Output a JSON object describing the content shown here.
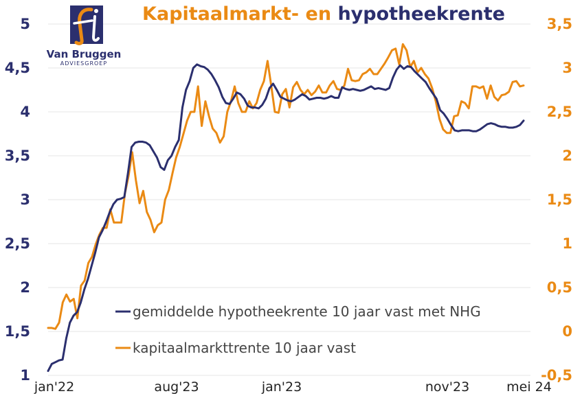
{
  "logo": {
    "name": "Van Bruggen",
    "sub": "ADVIESGROEP",
    "colors": {
      "blue": "#2b2f6e",
      "orange": "#ea8a14"
    }
  },
  "chart_data": {
    "type": "line",
    "title_parts": [
      {
        "text": "Kapitaalmarkt- en ",
        "color": "#ea8a14"
      },
      {
        "text": "hypotheekrente",
        "color": "#2b2f6e"
      }
    ],
    "x_tick_labels": [
      "jan'22",
      "aug'23",
      "jan'23",
      "nov'23",
      "mei 24"
    ],
    "y_left": {
      "ticks": [
        "1",
        "1,5",
        "2",
        "2,5",
        "3",
        "3,5",
        "4",
        "4,5",
        "5"
      ],
      "range": [
        1,
        5
      ],
      "color": "#2b2f6e"
    },
    "y_right": {
      "ticks": [
        "-0,5",
        "0",
        "0,5",
        "1",
        "1,5",
        "2",
        "2,5",
        "3",
        "3,5"
      ],
      "range": [
        -0.5,
        3.5
      ],
      "color": "#ea8a14"
    },
    "grid": "horizontal",
    "legend_position": "bottom-right",
    "series": [
      {
        "name": "gemiddelde hypotheekrente 10 jaar vast met NHG",
        "axis": "left",
        "color": "#2b2f6e",
        "values": [
          1.05,
          1.13,
          1.15,
          1.17,
          1.18,
          1.42,
          1.6,
          1.68,
          1.72,
          1.83,
          1.98,
          2.1,
          2.25,
          2.4,
          2.57,
          2.65,
          2.75,
          2.86,
          2.95,
          3.0,
          3.01,
          3.03,
          3.3,
          3.6,
          3.65,
          3.66,
          3.66,
          3.65,
          3.62,
          3.55,
          3.48,
          3.37,
          3.34,
          3.45,
          3.5,
          3.6,
          3.68,
          4.05,
          4.25,
          4.35,
          4.5,
          4.54,
          4.52,
          4.51,
          4.48,
          4.43,
          4.36,
          4.28,
          4.17,
          4.1,
          4.09,
          4.15,
          4.22,
          4.2,
          4.15,
          4.07,
          4.05,
          4.05,
          4.04,
          4.08,
          4.15,
          4.27,
          4.32,
          4.25,
          4.17,
          4.15,
          4.13,
          4.12,
          4.14,
          4.17,
          4.2,
          4.18,
          4.14,
          4.15,
          4.16,
          4.16,
          4.15,
          4.16,
          4.18,
          4.16,
          4.16,
          4.28,
          4.26,
          4.25,
          4.26,
          4.25,
          4.24,
          4.25,
          4.27,
          4.29,
          4.26,
          4.27,
          4.26,
          4.25,
          4.27,
          4.39,
          4.48,
          4.53,
          4.49,
          4.52,
          4.51,
          4.46,
          4.42,
          4.38,
          4.34,
          4.27,
          4.21,
          4.15,
          4.02,
          3.98,
          3.92,
          3.85,
          3.79,
          3.78,
          3.79,
          3.79,
          3.79,
          3.78,
          3.78,
          3.8,
          3.83,
          3.86,
          3.87,
          3.86,
          3.84,
          3.83,
          3.83,
          3.82,
          3.82,
          3.83,
          3.85,
          3.9
        ]
      },
      {
        "name": "kapitaalmarkttrente 10 jaar vast",
        "axis": "right",
        "color": "#ea8a14",
        "values": [
          0.04,
          0.04,
          0.03,
          0.1,
          0.33,
          0.42,
          0.34,
          0.37,
          0.15,
          0.52,
          0.58,
          0.78,
          0.85,
          0.99,
          1.1,
          1.18,
          1.18,
          1.39,
          1.24,
          1.24,
          1.24,
          1.57,
          1.77,
          2.04,
          1.72,
          1.46,
          1.6,
          1.36,
          1.27,
          1.13,
          1.21,
          1.24,
          1.5,
          1.61,
          1.8,
          1.98,
          2.1,
          2.25,
          2.4,
          2.5,
          2.5,
          2.79,
          2.34,
          2.62,
          2.45,
          2.31,
          2.26,
          2.15,
          2.22,
          2.5,
          2.62,
          2.79,
          2.6,
          2.5,
          2.5,
          2.62,
          2.54,
          2.6,
          2.75,
          2.85,
          3.08,
          2.8,
          2.5,
          2.49,
          2.7,
          2.76,
          2.55,
          2.78,
          2.84,
          2.75,
          2.7,
          2.75,
          2.69,
          2.73,
          2.8,
          2.72,
          2.72,
          2.8,
          2.85,
          2.76,
          2.75,
          2.8,
          2.99,
          2.86,
          2.85,
          2.86,
          2.93,
          2.95,
          2.99,
          2.93,
          2.93,
          2.99,
          3.05,
          3.12,
          3.2,
          3.22,
          3.04,
          3.27,
          3.2,
          3.01,
          3.08,
          2.95,
          3.0,
          2.93,
          2.88,
          2.77,
          2.62,
          2.42,
          2.3,
          2.26,
          2.26,
          2.45,
          2.46,
          2.62,
          2.6,
          2.54,
          2.79,
          2.79,
          2.77,
          2.79,
          2.65,
          2.8,
          2.67,
          2.63,
          2.69,
          2.7,
          2.73,
          2.84,
          2.85,
          2.79,
          2.8
        ]
      }
    ]
  }
}
